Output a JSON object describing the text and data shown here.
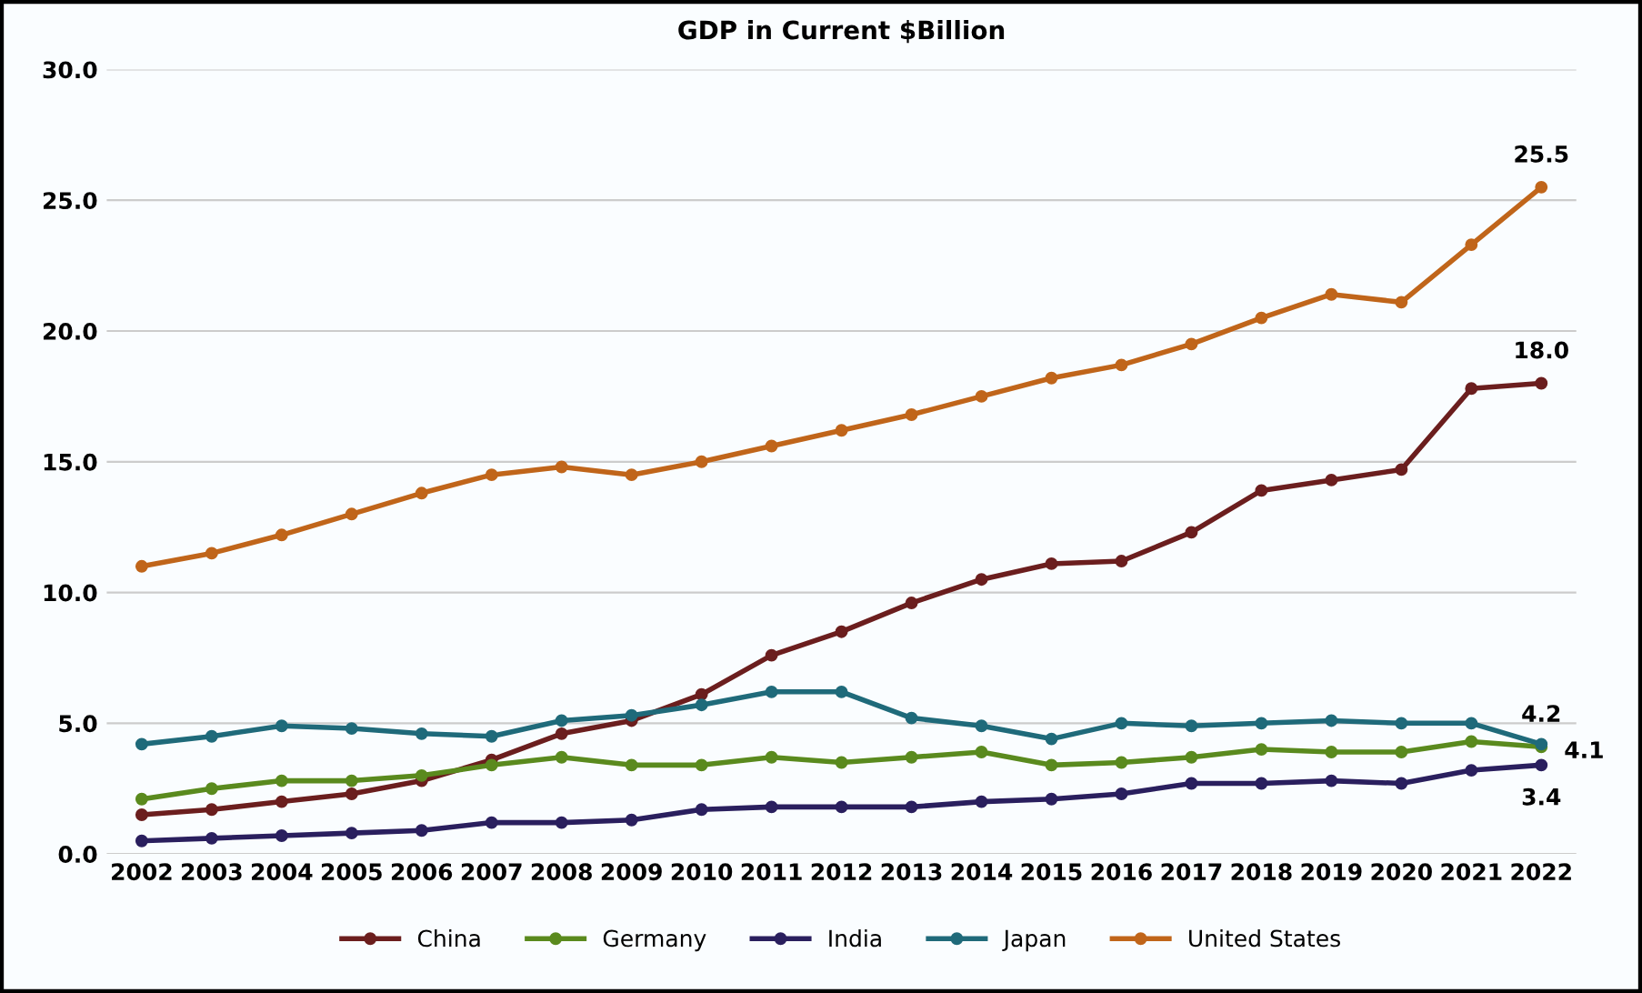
{
  "chart_data": {
    "type": "line",
    "title": "GDP in Current $Billion",
    "categories": [
      "2002",
      "2003",
      "2004",
      "2005",
      "2006",
      "2007",
      "2008",
      "2009",
      "2010",
      "2011",
      "2012",
      "2013",
      "2014",
      "2015",
      "2016",
      "2017",
      "2018",
      "2019",
      "2020",
      "2021",
      "2022"
    ],
    "series": [
      {
        "name": "China",
        "color": "#6b1e1e",
        "values": [
          1.5,
          1.7,
          2.0,
          2.3,
          2.8,
          3.6,
          4.6,
          5.1,
          6.1,
          7.6,
          8.5,
          9.6,
          10.5,
          11.1,
          11.2,
          12.3,
          13.9,
          14.3,
          14.7,
          17.8,
          18.0
        ],
        "value_labels": [
          null,
          null,
          null,
          null,
          null,
          null,
          null,
          null,
          null,
          null,
          null,
          null,
          null,
          null,
          null,
          null,
          null,
          null,
          null,
          null,
          "18.0"
        ]
      },
      {
        "name": "Germany",
        "color": "#5a8a1e",
        "values": [
          2.1,
          2.5,
          2.8,
          2.8,
          3.0,
          3.4,
          3.7,
          3.4,
          3.4,
          3.7,
          3.5,
          3.7,
          3.9,
          3.4,
          3.5,
          3.7,
          4.0,
          3.9,
          3.9,
          4.3,
          4.1
        ],
        "value_labels": [
          null,
          null,
          null,
          null,
          null,
          null,
          null,
          null,
          null,
          null,
          null,
          null,
          null,
          null,
          null,
          null,
          null,
          null,
          null,
          null,
          "4.1"
        ]
      },
      {
        "name": "India",
        "color": "#2a1f5e",
        "values": [
          0.5,
          0.6,
          0.7,
          0.8,
          0.9,
          1.2,
          1.2,
          1.3,
          1.7,
          1.8,
          1.8,
          1.8,
          2.0,
          2.1,
          2.3,
          2.7,
          2.7,
          2.8,
          2.7,
          3.2,
          3.4
        ],
        "value_labels": [
          null,
          null,
          null,
          null,
          null,
          null,
          null,
          null,
          null,
          null,
          null,
          null,
          null,
          null,
          null,
          null,
          null,
          null,
          null,
          null,
          "3.4"
        ]
      },
      {
        "name": "Japan",
        "color": "#1f6a7a",
        "values": [
          4.2,
          4.5,
          4.9,
          4.8,
          4.6,
          4.5,
          5.1,
          5.3,
          5.7,
          6.2,
          6.2,
          5.2,
          4.9,
          4.4,
          5.0,
          4.9,
          5.0,
          5.1,
          5.0,
          5.0,
          4.2
        ],
        "value_labels": [
          null,
          null,
          null,
          null,
          null,
          null,
          null,
          null,
          null,
          null,
          null,
          null,
          null,
          null,
          null,
          null,
          null,
          null,
          null,
          null,
          "4.2"
        ]
      },
      {
        "name": "United States",
        "color": "#c0651a",
        "values": [
          11.0,
          11.5,
          12.2,
          13.0,
          13.8,
          14.5,
          14.8,
          14.5,
          15.0,
          15.6,
          16.2,
          16.8,
          17.5,
          18.2,
          18.7,
          19.5,
          20.5,
          21.4,
          21.1,
          23.3,
          25.5
        ],
        "value_labels": [
          null,
          null,
          null,
          null,
          null,
          null,
          null,
          null,
          null,
          null,
          null,
          null,
          null,
          null,
          null,
          null,
          null,
          null,
          null,
          null,
          "25.5"
        ]
      }
    ],
    "ylim": [
      0,
      30
    ],
    "yticks": [
      {
        "value": 0,
        "label": "0.0"
      },
      {
        "value": 5,
        "label": "5.0"
      },
      {
        "value": 10,
        "label": "10.0"
      },
      {
        "value": 15,
        "label": "15.0"
      },
      {
        "value": 20,
        "label": "20.0"
      },
      {
        "value": 25,
        "label": "25.0"
      },
      {
        "value": 30,
        "label": "30.0"
      }
    ],
    "grid": "y",
    "legend": "bottom",
    "marker": "circle",
    "line_style": "solid"
  }
}
